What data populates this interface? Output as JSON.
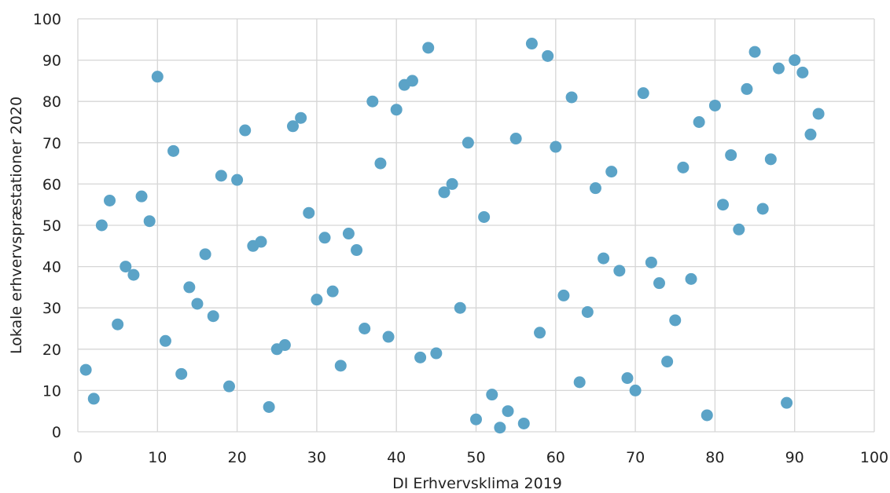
{
  "chart_data": {
    "type": "scatter",
    "xlabel": "DI Erhvervsklima 2019",
    "ylabel": "Lokale erhvervspræstationer 2020",
    "xlim": [
      0,
      100
    ],
    "ylim": [
      0,
      100
    ],
    "xticks": [
      0,
      10,
      20,
      30,
      40,
      50,
      60,
      70,
      80,
      90,
      100
    ],
    "yticks": [
      0,
      10,
      20,
      30,
      40,
      50,
      60,
      70,
      80,
      90,
      100
    ],
    "grid": true,
    "marker_color": "#5ba3c7",
    "points": [
      [
        1,
        15
      ],
      [
        2,
        8
      ],
      [
        3,
        50
      ],
      [
        4,
        56
      ],
      [
        5,
        26
      ],
      [
        6,
        40
      ],
      [
        7,
        38
      ],
      [
        8,
        57
      ],
      [
        9,
        51
      ],
      [
        10,
        86
      ],
      [
        11,
        22
      ],
      [
        12,
        68
      ],
      [
        13,
        14
      ],
      [
        14,
        35
      ],
      [
        15,
        31
      ],
      [
        16,
        43
      ],
      [
        17,
        28
      ],
      [
        18,
        62
      ],
      [
        19,
        11
      ],
      [
        20,
        61
      ],
      [
        21,
        73
      ],
      [
        22,
        45
      ],
      [
        23,
        46
      ],
      [
        24,
        6
      ],
      [
        25,
        20
      ],
      [
        26,
        21
      ],
      [
        27,
        74
      ],
      [
        28,
        76
      ],
      [
        29,
        53
      ],
      [
        30,
        32
      ],
      [
        31,
        47
      ],
      [
        32,
        34
      ],
      [
        33,
        16
      ],
      [
        34,
        48
      ],
      [
        35,
        44
      ],
      [
        36,
        25
      ],
      [
        37,
        80
      ],
      [
        38,
        65
      ],
      [
        39,
        23
      ],
      [
        40,
        78
      ],
      [
        41,
        84
      ],
      [
        42,
        85
      ],
      [
        43,
        18
      ],
      [
        44,
        93
      ],
      [
        45,
        19
      ],
      [
        46,
        58
      ],
      [
        47,
        60
      ],
      [
        48,
        30
      ],
      [
        49,
        70
      ],
      [
        50,
        3
      ],
      [
        51,
        52
      ],
      [
        52,
        9
      ],
      [
        53,
        1
      ],
      [
        54,
        5
      ],
      [
        55,
        71
      ],
      [
        56,
        2
      ],
      [
        57,
        94
      ],
      [
        58,
        24
      ],
      [
        59,
        91
      ],
      [
        60,
        69
      ],
      [
        61,
        33
      ],
      [
        62,
        81
      ],
      [
        63,
        12
      ],
      [
        64,
        29
      ],
      [
        65,
        59
      ],
      [
        66,
        42
      ],
      [
        67,
        63
      ],
      [
        68,
        39
      ],
      [
        69,
        13
      ],
      [
        70,
        10
      ],
      [
        71,
        82
      ],
      [
        72,
        41
      ],
      [
        73,
        36
      ],
      [
        74,
        17
      ],
      [
        75,
        27
      ],
      [
        76,
        64
      ],
      [
        77,
        37
      ],
      [
        78,
        75
      ],
      [
        79,
        4
      ],
      [
        80,
        79
      ],
      [
        81,
        55
      ],
      [
        82,
        67
      ],
      [
        83,
        49
      ],
      [
        84,
        83
      ],
      [
        85,
        92
      ],
      [
        86,
        54
      ],
      [
        87,
        66
      ],
      [
        88,
        88
      ],
      [
        89,
        7
      ],
      [
        90,
        90
      ],
      [
        91,
        87
      ],
      [
        92,
        72
      ],
      [
        93,
        77
      ]
    ]
  }
}
